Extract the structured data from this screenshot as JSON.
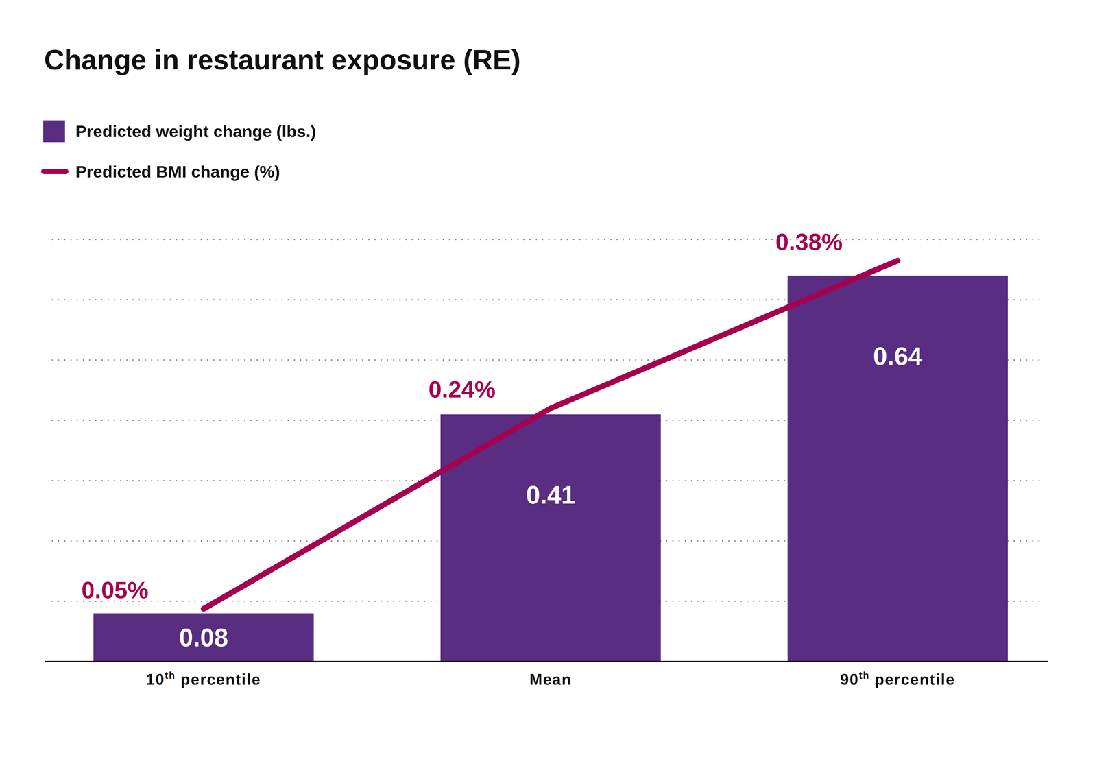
{
  "chart_data": {
    "type": "bar",
    "title": "Change in restaurant exposure (RE)",
    "categories": [
      "10th percentile",
      "Mean",
      "90th percentile"
    ],
    "series": [
      {
        "name": "Predicted weight change (lbs.)",
        "type": "bar",
        "color": "#582d82",
        "values": [
          0.08,
          0.41,
          0.64
        ]
      },
      {
        "name": "Predicted BMI change (%)",
        "type": "line",
        "axis": "y2",
        "color": "#a5004f",
        "values": [
          0.05,
          0.24,
          0.38
        ],
        "value_labels": [
          "0.05%",
          "0.24%",
          "0.38%"
        ]
      }
    ],
    "ylim": [
      0,
      0.7
    ],
    "yticks": [
      0,
      0.1,
      0.2,
      0.3,
      0.4,
      0.5,
      0.6,
      0.7
    ],
    "y2lim": [
      0,
      0.4
    ],
    "grid": true,
    "legend": "top-left",
    "data_labels": true,
    "tick_labels": false
  }
}
